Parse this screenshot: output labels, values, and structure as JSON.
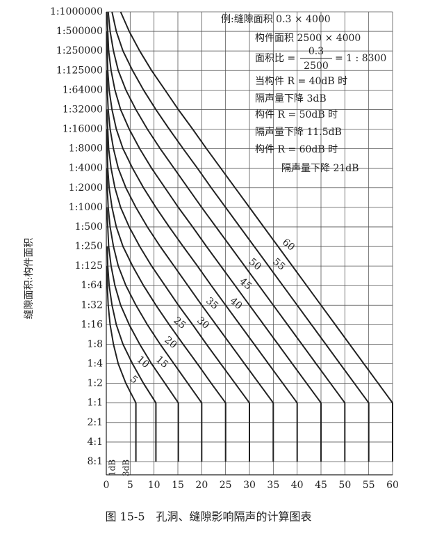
{
  "chart_data": {
    "type": "line",
    "y_axis_label": "缝隙面积:构件面积",
    "caption": "图 15-5　孔洞、缝隙影响隔声的计算图表",
    "categories": [
      "1:1000000",
      "1:500000",
      "1:250000",
      "1:125000",
      "1:64000",
      "1:32000",
      "1:16000",
      "1:8000",
      "1:4000",
      "1:2000",
      "1:1000",
      "1:500",
      "1:250",
      "1:125",
      "1:64",
      "1:32",
      "1:16",
      "1:8",
      "1:4",
      "1:2",
      "1:1",
      "2:1",
      "4:1",
      "8:1"
    ],
    "xlim": [
      0,
      60
    ],
    "xticks": [
      0,
      5,
      10,
      15,
      20,
      25,
      30,
      35,
      40,
      45,
      50,
      55,
      60
    ],
    "grid": true,
    "line_color": "#222222",
    "bottom_labels": [
      "1dB",
      "3dB"
    ],
    "notes": [
      "例:缝隙面积 0.3 × 4000",
      "构件面积 2500 × 4000",
      "当构件 R = 40dB 时",
      "隔声量下降 3dB",
      "构件 R = 50dB 时",
      "隔声量下降 11.5dB",
      "构件 R = 60dB 时",
      "隔声量下降 21dB"
    ],
    "ratio": {
      "prefix": "面积比 =",
      "numerator": "0.3",
      "denominator": "2500",
      "suffix": "= 1 : 8300"
    },
    "series": [
      {
        "name": "60",
        "values": [
          3.0,
          4.8,
          7.0,
          9.5,
          12.3,
          15.1,
          18.1,
          21,
          24,
          27,
          30,
          33,
          36,
          39,
          42,
          45,
          48,
          51,
          54,
          57,
          60,
          60,
          60,
          60
        ]
      },
      {
        "name": "55",
        "values": [
          1.2,
          2.1,
          3.5,
          5.5,
          7.8,
          10.4,
          13.2,
          16.1,
          19.1,
          22,
          25,
          28,
          31,
          34,
          37,
          40,
          43,
          46,
          49,
          52,
          55,
          55,
          55,
          55
        ]
      },
      {
        "name": "50",
        "values": [
          0.4,
          0.8,
          1.5,
          2.5,
          4.1,
          6.2,
          8.6,
          11.3,
          14.2,
          17.1,
          20.0,
          23,
          26,
          29,
          32,
          35,
          38,
          41,
          44,
          47,
          50,
          50,
          50,
          50
        ]
      },
      {
        "name": "45",
        "values": [
          0.1,
          0.3,
          0.5,
          1.0,
          1.8,
          3.0,
          4.8,
          7.0,
          9.5,
          12.3,
          15.1,
          18.1,
          21,
          24,
          27,
          30,
          33,
          36,
          39,
          42,
          45,
          45,
          45,
          45
        ]
      },
      {
        "name": "40",
        "values": [
          null,
          0.1,
          0.2,
          0.3,
          0.6,
          1.2,
          2.1,
          3.5,
          5.5,
          7.8,
          10.4,
          13.2,
          16.1,
          19.1,
          22,
          25,
          28,
          31,
          34,
          37,
          40,
          40,
          40,
          40
        ]
      },
      {
        "name": "35",
        "values": [
          null,
          null,
          null,
          0.1,
          0.2,
          0.4,
          0.8,
          1.5,
          2.5,
          4.1,
          6.2,
          8.6,
          11.3,
          14.2,
          17.1,
          20.0,
          23,
          26,
          29,
          32,
          35,
          35,
          35,
          35
        ]
      },
      {
        "name": "30",
        "values": [
          null,
          null,
          null,
          null,
          null,
          0.1,
          0.3,
          0.5,
          1.0,
          1.8,
          3.0,
          4.8,
          7.0,
          9.5,
          12.3,
          15.1,
          18.1,
          21,
          24,
          27,
          30,
          30,
          30,
          30
        ]
      },
      {
        "name": "25",
        "values": [
          null,
          null,
          null,
          null,
          null,
          null,
          0.1,
          0.2,
          0.3,
          0.6,
          1.2,
          2.1,
          3.5,
          5.5,
          7.8,
          10.4,
          13.2,
          16.1,
          19.1,
          22,
          25,
          25,
          25,
          25
        ]
      },
      {
        "name": "20",
        "values": [
          null,
          null,
          null,
          null,
          null,
          null,
          null,
          null,
          0.1,
          0.2,
          0.4,
          0.8,
          1.5,
          2.5,
          4.1,
          6.2,
          8.6,
          11.3,
          14.2,
          17.1,
          20.0,
          20.0,
          20.0,
          20.0
        ]
      },
      {
        "name": "15",
        "values": [
          null,
          null,
          null,
          null,
          null,
          null,
          null,
          null,
          null,
          null,
          0.1,
          0.3,
          0.5,
          1.0,
          1.8,
          3.0,
          4.8,
          7.0,
          9.5,
          12.3,
          15.1,
          15.1,
          15.1,
          15.1
        ]
      },
      {
        "name": "10",
        "values": [
          null,
          null,
          null,
          null,
          null,
          null,
          null,
          null,
          null,
          null,
          null,
          null,
          0.2,
          0.3,
          0.6,
          1.2,
          2.1,
          3.5,
          5.5,
          7.8,
          10.4,
          10.4,
          10.4,
          10.4
        ]
      },
      {
        "name": "5",
        "values": [
          null,
          null,
          null,
          null,
          null,
          null,
          null,
          null,
          null,
          null,
          null,
          null,
          null,
          0.1,
          0.2,
          0.4,
          0.8,
          1.5,
          2.5,
          4.1,
          6.2,
          6.2,
          6.2,
          6.2
        ]
      }
    ]
  }
}
